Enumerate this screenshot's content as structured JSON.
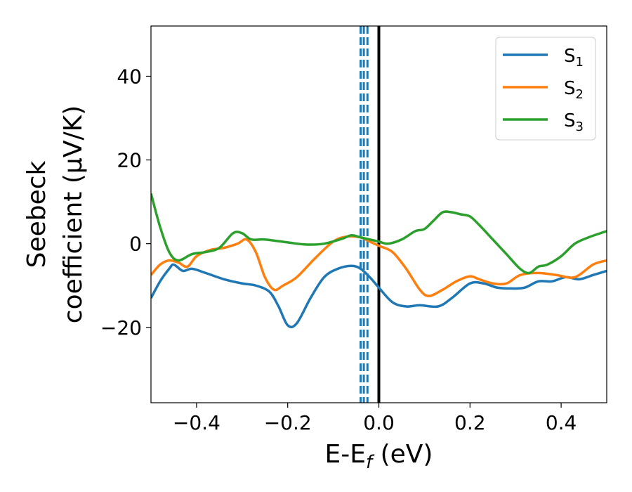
{
  "chart_data": {
    "type": "line",
    "xlabel_main": "E-E",
    "xlabel_sub": "f",
    "xlabel_unit": " (eV)",
    "ylabel_line1": "Seebeck",
    "ylabel_line2": "coefficient  (μV/K)",
    "xlim": [
      -0.5,
      0.5
    ],
    "ylim": [
      -38,
      52
    ],
    "xticks": [
      -0.4,
      -0.2,
      0.0,
      0.2,
      0.4
    ],
    "xtick_labels": [
      "−0.4",
      "−0.2",
      "0.0",
      "0.2",
      "0.4"
    ],
    "yticks": [
      -20,
      0,
      20,
      40
    ],
    "ytick_labels": [
      "−20",
      "0",
      "20",
      "40"
    ],
    "legend_position": "top-right",
    "grid": false,
    "vlines_dashed": {
      "x": [
        -0.04,
        -0.033,
        -0.025
      ],
      "color": "#1f77b4"
    },
    "vline_solid": {
      "x": 0.0,
      "color": "#000000"
    },
    "series": [
      {
        "name": "S",
        "sub": "1",
        "color": "#1f77b4",
        "points": [
          [
            -0.5,
            -13
          ],
          [
            -0.48,
            -9
          ],
          [
            -0.46,
            -6
          ],
          [
            -0.45,
            -5
          ],
          [
            -0.43,
            -6.5
          ],
          [
            -0.41,
            -6
          ],
          [
            -0.38,
            -7
          ],
          [
            -0.34,
            -8.5
          ],
          [
            -0.3,
            -9.5
          ],
          [
            -0.27,
            -10
          ],
          [
            -0.24,
            -11.5
          ],
          [
            -0.22,
            -15
          ],
          [
            -0.2,
            -19.5
          ],
          [
            -0.18,
            -19
          ],
          [
            -0.15,
            -13
          ],
          [
            -0.12,
            -8
          ],
          [
            -0.09,
            -6
          ],
          [
            -0.06,
            -5.3
          ],
          [
            -0.04,
            -6
          ],
          [
            -0.02,
            -8
          ],
          [
            0.0,
            -10.5
          ],
          [
            0.03,
            -14
          ],
          [
            0.06,
            -15
          ],
          [
            0.09,
            -14.7
          ],
          [
            0.13,
            -15
          ],
          [
            0.16,
            -13
          ],
          [
            0.2,
            -9.5
          ],
          [
            0.23,
            -9.5
          ],
          [
            0.26,
            -10.5
          ],
          [
            0.29,
            -10.7
          ],
          [
            0.32,
            -10.5
          ],
          [
            0.35,
            -9
          ],
          [
            0.38,
            -9
          ],
          [
            0.41,
            -8
          ],
          [
            0.44,
            -8.5
          ],
          [
            0.47,
            -7.5
          ],
          [
            0.5,
            -6.5
          ]
        ]
      },
      {
        "name": "S",
        "sub": "2",
        "color": "#ff7f0e",
        "points": [
          [
            -0.5,
            -7.5
          ],
          [
            -0.48,
            -5
          ],
          [
            -0.46,
            -4
          ],
          [
            -0.44,
            -4.5
          ],
          [
            -0.42,
            -5.5
          ],
          [
            -0.4,
            -3
          ],
          [
            -0.37,
            -1.5
          ],
          [
            -0.34,
            -1
          ],
          [
            -0.31,
            0
          ],
          [
            -0.29,
            1
          ],
          [
            -0.27,
            -2
          ],
          [
            -0.25,
            -8
          ],
          [
            -0.23,
            -11
          ],
          [
            -0.21,
            -10
          ],
          [
            -0.18,
            -8
          ],
          [
            -0.14,
            -3.5
          ],
          [
            -0.1,
            0.5
          ],
          [
            -0.07,
            1.7
          ],
          [
            -0.04,
            1.5
          ],
          [
            -0.02,
            0.5
          ],
          [
            0.0,
            -0.5
          ],
          [
            0.03,
            -2
          ],
          [
            0.06,
            -6
          ],
          [
            0.09,
            -11
          ],
          [
            0.11,
            -12.5
          ],
          [
            0.14,
            -11
          ],
          [
            0.17,
            -9
          ],
          [
            0.2,
            -7.8
          ],
          [
            0.22,
            -8.5
          ],
          [
            0.25,
            -9.5
          ],
          [
            0.28,
            -9.5
          ],
          [
            0.31,
            -7.5
          ],
          [
            0.35,
            -7
          ],
          [
            0.39,
            -7.5
          ],
          [
            0.43,
            -8
          ],
          [
            0.47,
            -5
          ],
          [
            0.5,
            -4
          ]
        ]
      },
      {
        "name": "S",
        "sub": "3",
        "color": "#2ca02c",
        "points": [
          [
            -0.5,
            12
          ],
          [
            -0.48,
            4
          ],
          [
            -0.46,
            -2
          ],
          [
            -0.44,
            -4
          ],
          [
            -0.41,
            -2.5
          ],
          [
            -0.38,
            -2
          ],
          [
            -0.35,
            -1
          ],
          [
            -0.32,
            2.5
          ],
          [
            -0.3,
            2.5
          ],
          [
            -0.28,
            1
          ],
          [
            -0.25,
            1
          ],
          [
            -0.2,
            0.3
          ],
          [
            -0.16,
            -0.2
          ],
          [
            -0.12,
            0
          ],
          [
            -0.08,
            1.2
          ],
          [
            -0.06,
            2
          ],
          [
            -0.04,
            1.5
          ],
          [
            -0.02,
            1
          ],
          [
            0.0,
            0.5
          ],
          [
            0.02,
            0
          ],
          [
            0.05,
            1
          ],
          [
            0.08,
            3
          ],
          [
            0.1,
            3.5
          ],
          [
            0.12,
            5.5
          ],
          [
            0.14,
            7.5
          ],
          [
            0.16,
            7.5
          ],
          [
            0.18,
            7
          ],
          [
            0.2,
            6.5
          ],
          [
            0.22,
            4.5
          ],
          [
            0.25,
            1
          ],
          [
            0.28,
            -2.5
          ],
          [
            0.31,
            -6
          ],
          [
            0.33,
            -7
          ],
          [
            0.35,
            -5.5
          ],
          [
            0.37,
            -5
          ],
          [
            0.4,
            -3
          ],
          [
            0.43,
            0
          ],
          [
            0.46,
            1.5
          ],
          [
            0.5,
            3
          ]
        ]
      }
    ]
  }
}
